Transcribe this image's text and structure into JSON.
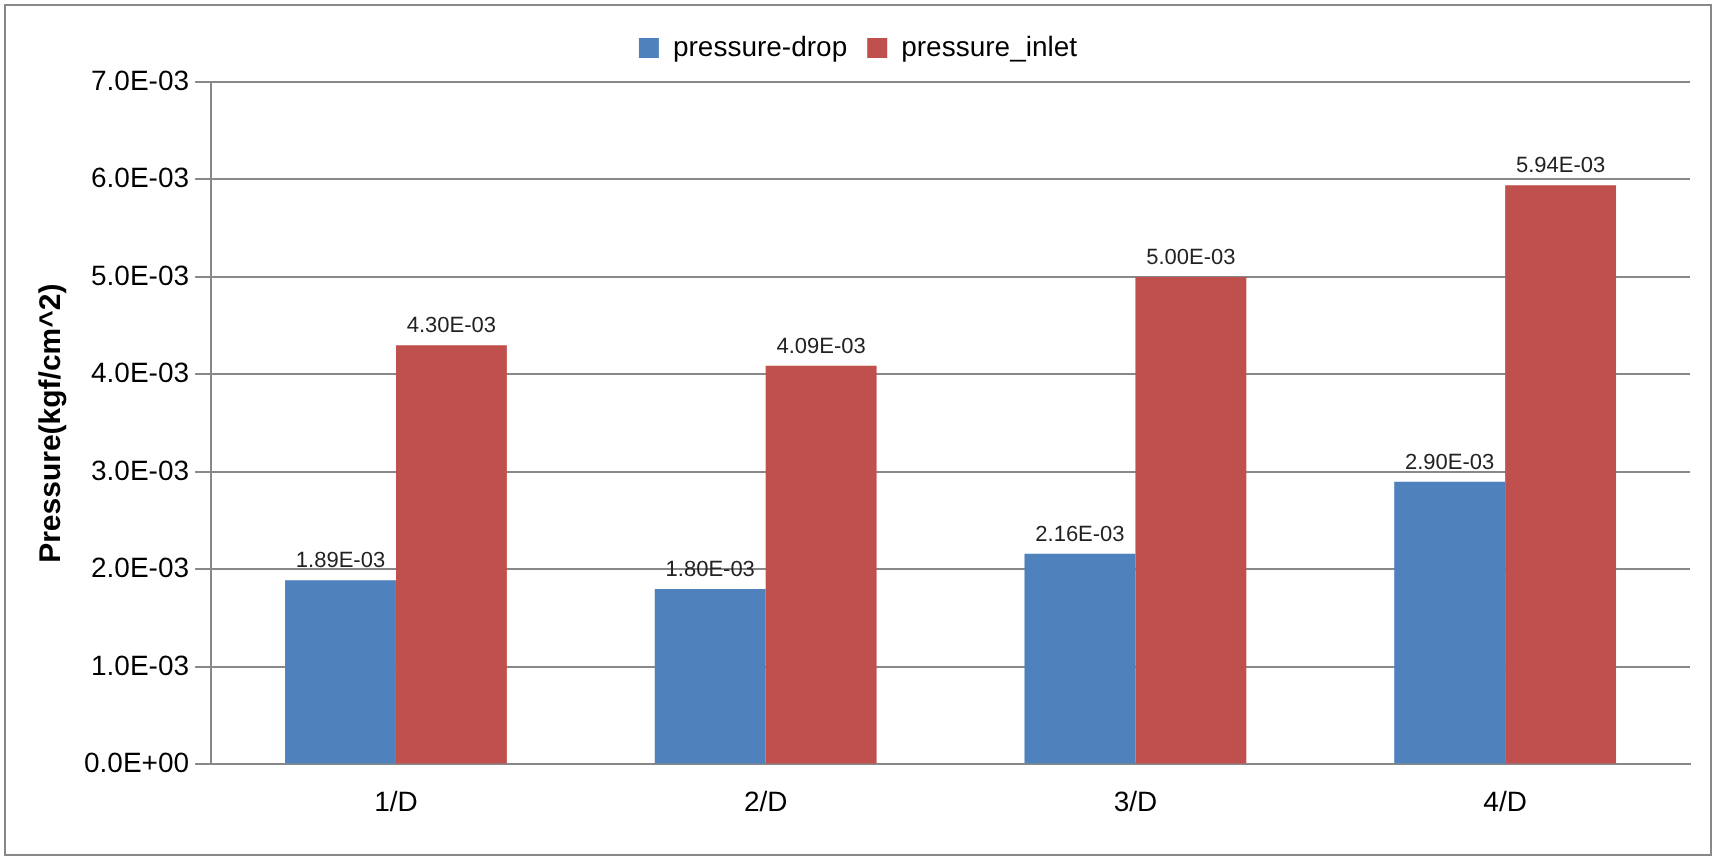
{
  "chart_data": {
    "type": "bar",
    "ylabel": "Pressure(kgf/cm^2)",
    "categories": [
      "1/D",
      "2/D",
      "3/D",
      "4/D"
    ],
    "series": [
      {
        "name": "pressure-drop",
        "color": "#4f81bd",
        "values": [
          0.00189,
          0.0018,
          0.00216,
          0.0029
        ],
        "value_labels": [
          "1.89E-03",
          "1.80E-03",
          "2.16E-03",
          "2.90E-03"
        ]
      },
      {
        "name": "pressure_inlet",
        "color": "#c0504d",
        "values": [
          0.0043,
          0.00409,
          0.005,
          0.00594
        ],
        "value_labels": [
          "4.30E-03",
          "4.09E-03",
          "5.00E-03",
          "5.94E-03"
        ]
      }
    ],
    "ylim": [
      0,
      0.007
    ],
    "yticks": [
      {
        "value": 0,
        "label": "0.0E+00"
      },
      {
        "value": 0.001,
        "label": "1.0E-03"
      },
      {
        "value": 0.002,
        "label": "2.0E-03"
      },
      {
        "value": 0.003,
        "label": "3.0E-03"
      },
      {
        "value": 0.004,
        "label": "4.0E-03"
      },
      {
        "value": 0.005,
        "label": "5.0E-03"
      },
      {
        "value": 0.006,
        "label": "6.0E-03"
      },
      {
        "value": 0.007,
        "label": "7.0E-03"
      }
    ],
    "grid": "y",
    "legend": "top"
  }
}
